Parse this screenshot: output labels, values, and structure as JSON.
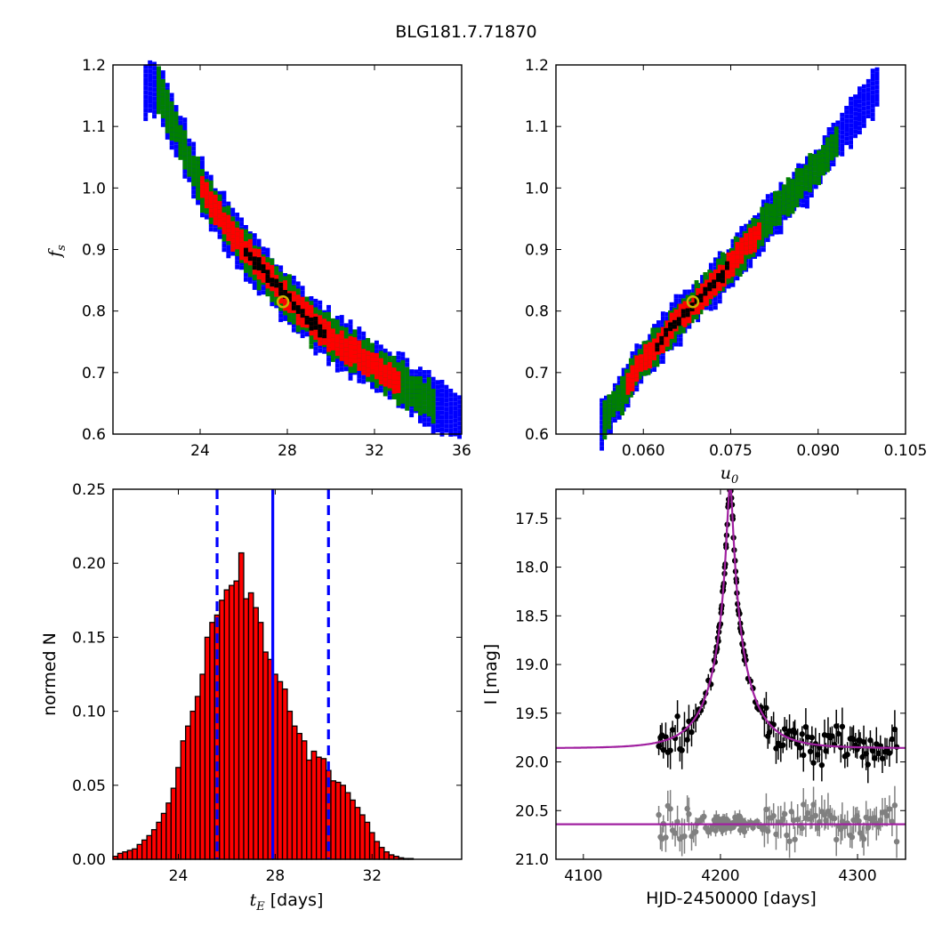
{
  "figure_title": "BLG181.7.71870",
  "colors": {
    "sigma1": "#000000",
    "sigma2": "#ff0000",
    "sigma3": "#008000",
    "sigma4": "#0000ff",
    "best_fit_marker": "#c8b400",
    "model": "#a020a0",
    "residuals": "#808080",
    "hist_bar": "#ff0000",
    "hist_line": "#0000ff"
  },
  "chart_data": [
    {
      "id": "fs_vs_tE",
      "type": "heatmap",
      "ylabel_symbol": "f",
      "ylabel_sub": "s",
      "xlim": [
        20,
        36
      ],
      "ylim": [
        0.6,
        1.2
      ],
      "xticks": [
        "24",
        "28",
        "32",
        "36"
      ],
      "yticks": [
        "0.6",
        "0.7",
        "0.8",
        "0.9",
        "1.0",
        "1.1",
        "1.2"
      ],
      "levels": [
        "blue",
        "green",
        "red",
        "black"
      ],
      "centerline": [
        [
          22.0,
          1.16
        ],
        [
          24.0,
          1.0
        ],
        [
          25.5,
          0.92
        ],
        [
          27.0,
          0.86
        ],
        [
          28.5,
          0.8
        ],
        [
          30.0,
          0.755
        ],
        [
          32.0,
          0.71
        ],
        [
          34.0,
          0.665
        ],
        [
          35.8,
          0.63
        ]
      ],
      "level_extent_tE": {
        "blue": [
          21.4,
          36.0
        ],
        "green": [
          22.0,
          34.8
        ],
        "red": [
          24.0,
          33.0
        ],
        "black": [
          26.0,
          29.6
        ]
      },
      "best_fit": {
        "x": 27.8,
        "y": 0.815
      }
    },
    {
      "id": "fs_vs_u0",
      "type": "heatmap",
      "xlabel_symbol": "u",
      "xlabel_sub": "0",
      "xlim": [
        0.045,
        0.105
      ],
      "ylim": [
        0.6,
        1.2
      ],
      "xticks": [
        "0.060",
        "0.075",
        "0.090",
        "0.105"
      ],
      "yticks": [
        "0.6",
        "0.7",
        "0.8",
        "0.9",
        "1.0",
        "1.1",
        "1.2"
      ],
      "levels": [
        "blue",
        "green",
        "red",
        "black"
      ],
      "centerline": [
        [
          0.0525,
          0.615
        ],
        [
          0.058,
          0.7
        ],
        [
          0.064,
          0.77
        ],
        [
          0.0685,
          0.815
        ],
        [
          0.075,
          0.88
        ],
        [
          0.082,
          0.96
        ],
        [
          0.09,
          1.04
        ],
        [
          0.096,
          1.12
        ],
        [
          0.1,
          1.17
        ]
      ],
      "level_extent_u0": {
        "blue": [
          0.0525,
          0.1
        ],
        "green": [
          0.053,
          0.093
        ],
        "red": [
          0.057,
          0.08
        ],
        "black": [
          0.062,
          0.0745
        ]
      },
      "best_fit": {
        "x": 0.0685,
        "y": 0.815
      }
    },
    {
      "id": "tE_histogram",
      "type": "bar",
      "xlabel_symbol": "t",
      "xlabel_sub": "E",
      "xlabel_rest": " [days]",
      "ylabel": "normed N",
      "xlim": [
        21.3,
        35.7
      ],
      "ylim": [
        0.0,
        0.25
      ],
      "xticks": [
        "24",
        "28",
        "32"
      ],
      "yticks": [
        "0.00",
        "0.05",
        "0.10",
        "0.15",
        "0.20",
        "0.25"
      ],
      "bin_start": 21.3,
      "bin_width": 0.2,
      "values": [
        0.002,
        0.004,
        0.005,
        0.006,
        0.007,
        0.01,
        0.013,
        0.016,
        0.02,
        0.025,
        0.031,
        0.038,
        0.048,
        0.062,
        0.08,
        0.09,
        0.1,
        0.11,
        0.125,
        0.15,
        0.16,
        0.165,
        0.175,
        0.182,
        0.185,
        0.188,
        0.207,
        0.176,
        0.18,
        0.17,
        0.16,
        0.14,
        0.135,
        0.125,
        0.12,
        0.115,
        0.1,
        0.09,
        0.085,
        0.08,
        0.067,
        0.073,
        0.069,
        0.068,
        0.06,
        0.053,
        0.052,
        0.05,
        0.045,
        0.04,
        0.035,
        0.03,
        0.025,
        0.018,
        0.012,
        0.008,
        0.005,
        0.003,
        0.002,
        0.001,
        0.0005,
        0.0005
      ],
      "vlines": [
        {
          "x": 25.6,
          "style": "dashed"
        },
        {
          "x": 27.9,
          "style": "solid"
        },
        {
          "x": 30.2,
          "style": "dashed"
        }
      ]
    },
    {
      "id": "light_curve",
      "type": "scatter",
      "xlabel": "HJD-2450000 [days]",
      "ylabel": "I [mag]",
      "xlim": [
        4080,
        4335
      ],
      "ylim": [
        21.0,
        17.2
      ],
      "xticks": [
        "4100",
        "4200",
        "4300"
      ],
      "yticks": [
        "17.5",
        "18.0",
        "18.5",
        "19.0",
        "19.5",
        "20.0",
        "20.5",
        "21.0"
      ],
      "model": {
        "t0": 4207,
        "tE": 27.8,
        "u0": 0.0685,
        "fs": 0.815,
        "baseline": 19.86
      },
      "residual_baseline": 20.64,
      "data_range": [
        4155,
        4330
      ]
    }
  ]
}
